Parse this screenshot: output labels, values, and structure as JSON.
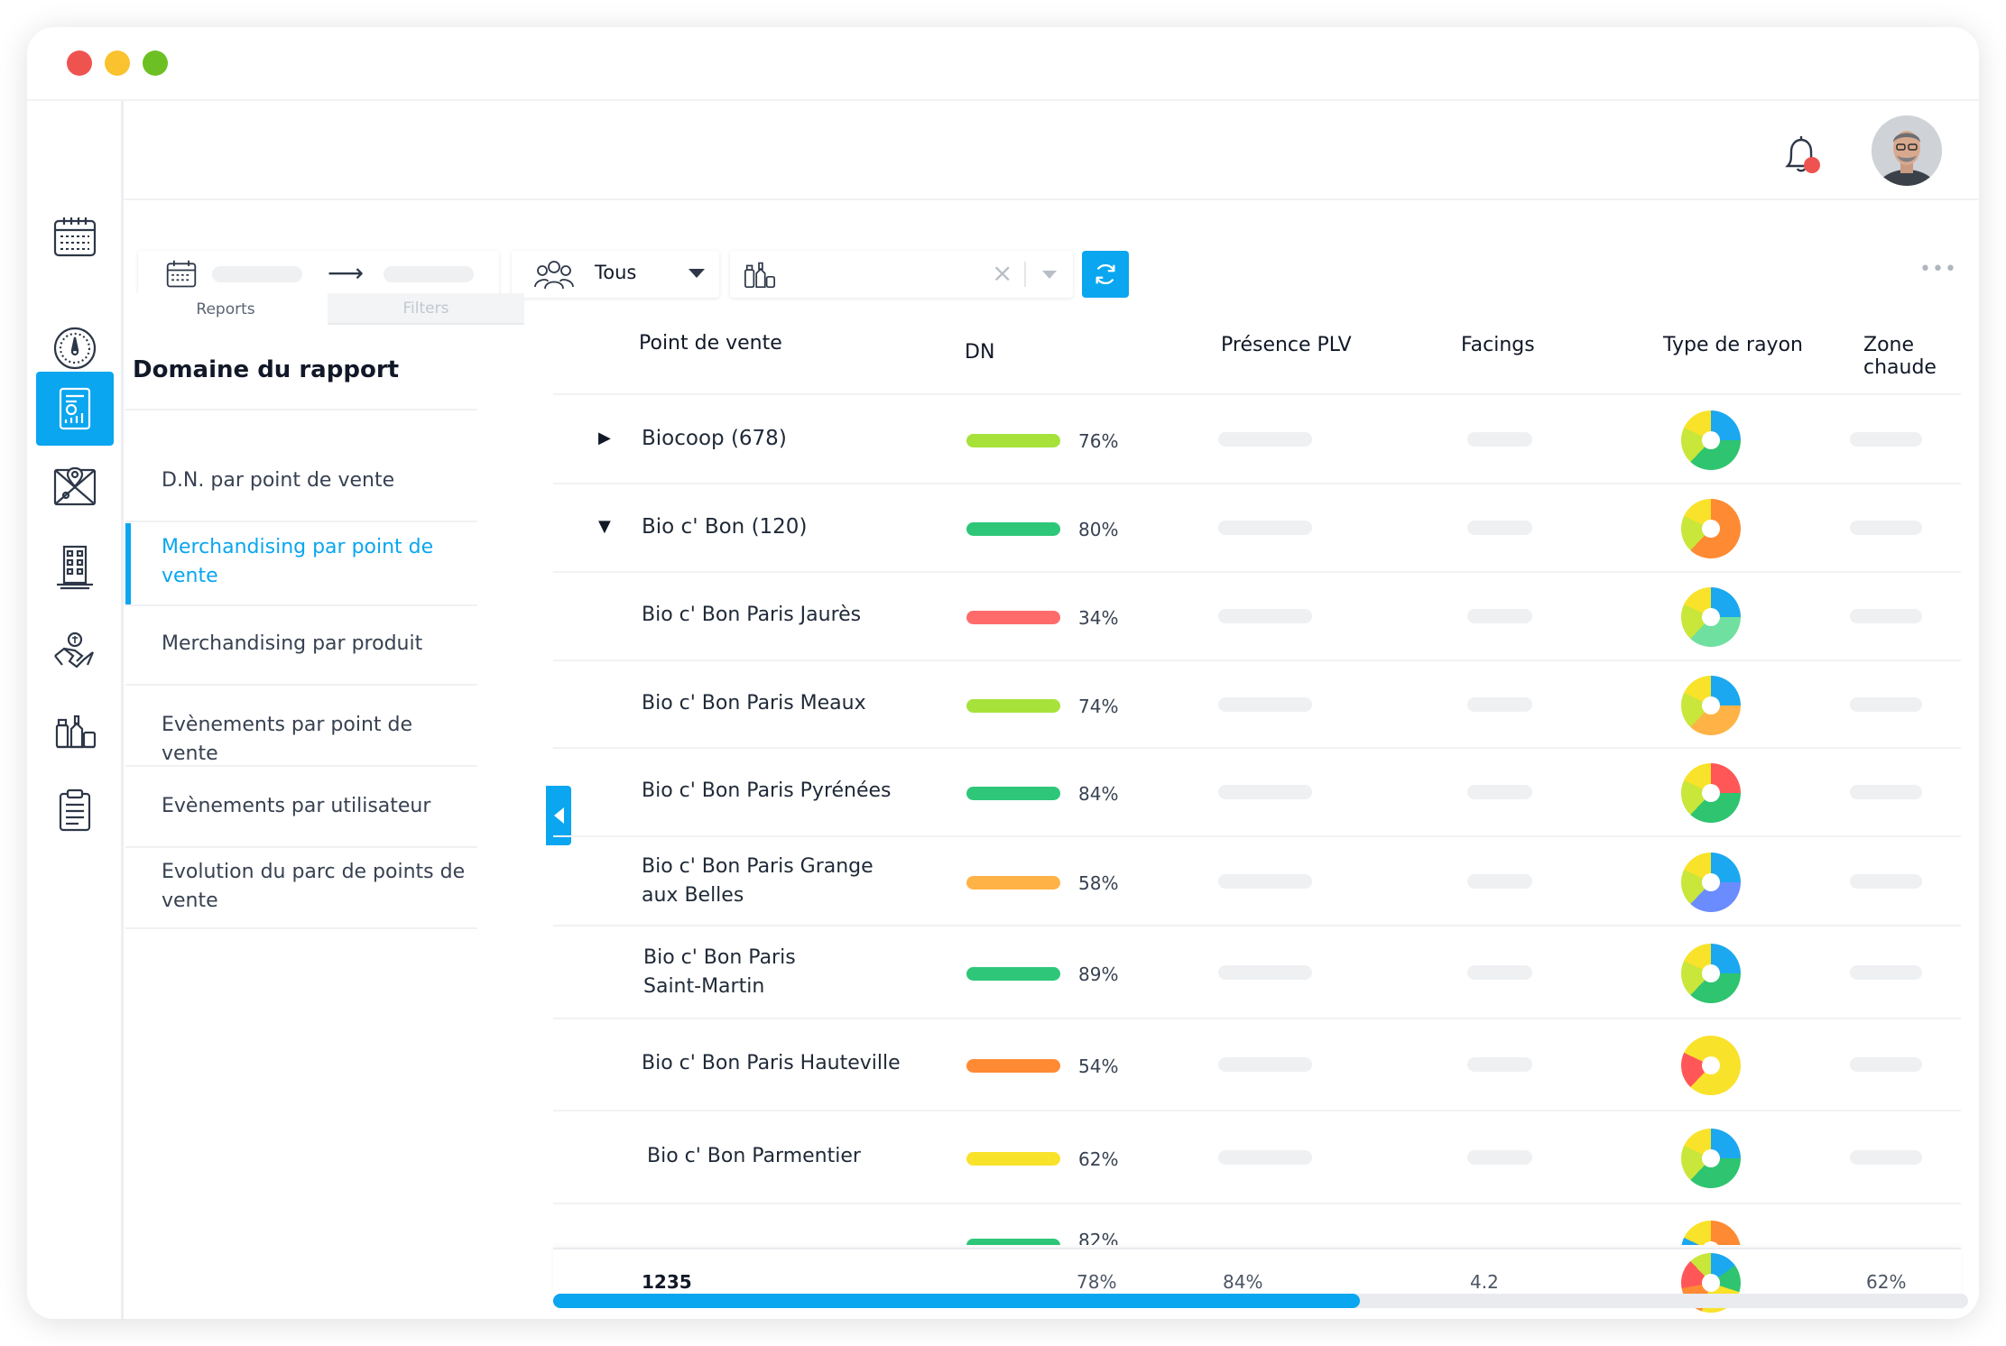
{
  "window": {
    "traffic_lights": [
      "#ef5350",
      "#f9c22e",
      "#6cc024"
    ]
  },
  "sidebar": {
    "items": [
      {
        "icon": "calendar-icon",
        "active": false
      },
      {
        "icon": "speedometer-icon",
        "active": false
      },
      {
        "icon": "report-icon",
        "active": true
      },
      {
        "icon": "map-icon",
        "active": false
      },
      {
        "icon": "building-icon",
        "active": false
      },
      {
        "icon": "handshake-icon",
        "active": false
      },
      {
        "icon": "products-icon",
        "active": false
      },
      {
        "icon": "clipboard-icon",
        "active": false
      }
    ]
  },
  "topbar": {
    "bell_icon": "bell-icon",
    "notification_dot_color": "#ef5350",
    "avatar_icon": "user-avatar"
  },
  "filters": {
    "date_arrow": "⟶",
    "audience_value": "Tous",
    "product_clear": "×",
    "refresh_icon": "refresh-icon",
    "more_icon": "•••"
  },
  "panel": {
    "tabs": [
      "Reports",
      "Filters"
    ],
    "domain_title": "Domaine du rapport",
    "menu": [
      "D.N. par point de vente",
      "Merchandising par point de vente",
      "Merchandising par produit",
      "Evènements par point de vente",
      "Evènements par utilisateur",
      "Evolution du parc de points de vente"
    ],
    "active_index": 1
  },
  "table": {
    "columns": [
      "Point de vente",
      "DN",
      "Présence PLV",
      "Facings",
      "Type de rayon",
      "Zone chaude"
    ],
    "rows": [
      {
        "name": "Biocoop (678)",
        "dn": "76%",
        "dn_value": 0.76,
        "bar_color": "#a6e23a",
        "expander": "▶",
        "donut": [
          "#2fc46f",
          "#c9e63a",
          "#f9e22a",
          "#1ba8f0"
        ]
      },
      {
        "name": "Bio c' Bon (120)",
        "dn": "80%",
        "dn_value": 0.8,
        "bar_color": "#2ec779",
        "expander": "▼",
        "donut": [
          "#ff8a34",
          "#c9e63a",
          "#f9e22a",
          "#ff8a34"
        ]
      },
      {
        "name": "Bio c' Bon Paris Jaurès",
        "dn": "34%",
        "dn_value": 0.34,
        "bar_color": "#ff6b6b",
        "expander": "",
        "donut": [
          "#6fe0a0",
          "#c9e63a",
          "#f9e22a",
          "#1ba8f0"
        ]
      },
      {
        "name": "Bio c' Bon Paris Meaux",
        "dn": "74%",
        "dn_value": 0.74,
        "bar_color": "#a6e23a",
        "expander": "",
        "donut": [
          "#ffb347",
          "#c9e63a",
          "#f9e22a",
          "#1ba8f0"
        ]
      },
      {
        "name": "Bio c' Bon Paris Pyrénées",
        "dn": "84%",
        "dn_value": 0.84,
        "bar_color": "#2ec779",
        "expander": "",
        "donut": [
          "#2fc46f",
          "#c9e63a",
          "#f9e22a",
          "#ff5757"
        ]
      },
      {
        "name": "Bio c' Bon Paris Grange aux Belles",
        "dn": "58%",
        "dn_value": 0.58,
        "bar_color": "#ffb347",
        "expander": "",
        "donut": [
          "#6b8cff",
          "#c9e63a",
          "#f9e22a",
          "#1ba8f0"
        ]
      },
      {
        "name": "Bio c' Bon Paris Saint-Martin",
        "dn": "89%",
        "dn_value": 0.89,
        "bar_color": "#2ec779",
        "expander": "",
        "donut": [
          "#2fc46f",
          "#c9e63a",
          "#f9e22a",
          "#1ba8f0"
        ]
      },
      {
        "name": "Bio c' Bon Paris Hauteville",
        "dn": "54%",
        "dn_value": 0.54,
        "bar_color": "#ff8a34",
        "expander": "",
        "donut": [
          "#f9e22a",
          "#ff5757",
          "#f9e22a",
          "#f9e22a"
        ]
      },
      {
        "name": "Bio c' Bon Parmentier",
        "dn": "62%",
        "dn_value": 0.62,
        "bar_color": "#f9e22a",
        "expander": "",
        "donut": [
          "#2fc46f",
          "#c9e63a",
          "#f9e22a",
          "#1ba8f0"
        ]
      },
      {
        "name": "",
        "dn": "82%",
        "dn_value": 0.82,
        "bar_color": "#2ec779",
        "expander": "",
        "donut": [
          "#ff8a34",
          "#1ba8f0",
          "#f9e22a",
          "#ff8a34"
        ]
      }
    ],
    "footer": {
      "count": "1235",
      "dn": "78%",
      "plv": "84%",
      "facings": "4.2",
      "zone": "62%",
      "donut": [
        "#ff5757",
        "#f9e22a",
        "#2fc46f",
        "#1ba8f0"
      ]
    }
  },
  "scroll": {
    "position": 0.57
  }
}
